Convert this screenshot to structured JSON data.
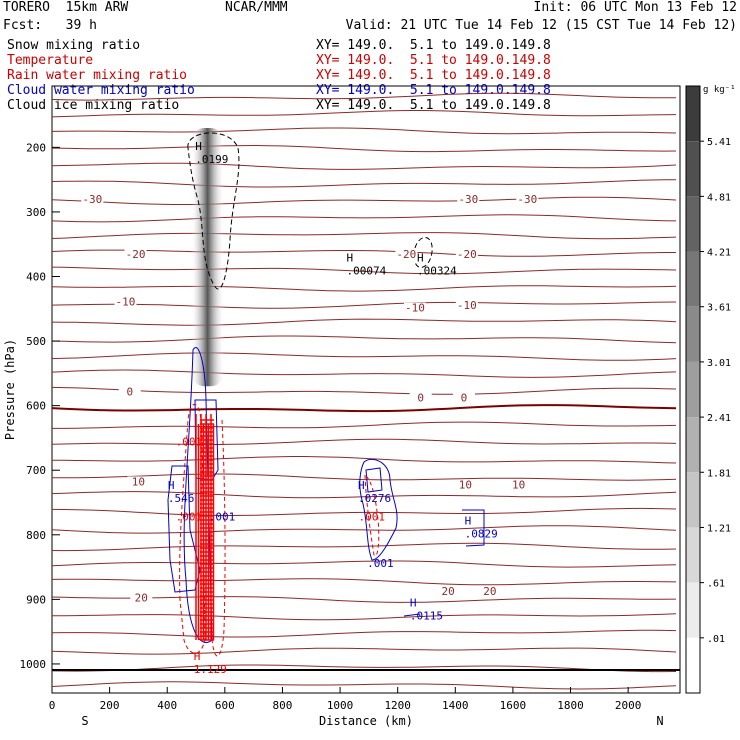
{
  "header": {
    "model": "TORERO  15km ARW",
    "center": "NCAR/MMM",
    "init": "Init: 06 UTC Mon 13 Feb 12",
    "fcst": "Fcst:   39 h",
    "valid": "Valid: 21 UTC Tue 14 Feb 12 (15 CST Tue 14 Feb 12)"
  },
  "legend": [
    {
      "label": "Snow mixing ratio",
      "xy": "XY= 149.0.  5.1 to 149.0.149.8",
      "color": "#000000"
    },
    {
      "label": "Temperature",
      "xy": "XY= 149.0.  5.1 to 149.0.149.8",
      "color": "#cc0000"
    },
    {
      "label": "Rain water mixing ratio",
      "xy": "XY= 149.0.  5.1 to 149.0.149.8",
      "color": "#cc0000"
    },
    {
      "label": "Cloud water mixing ratio",
      "xy": "XY= 149.0.  5.1 to 149.0.149.8",
      "color": "#0000cc"
    },
    {
      "label": "Cloud ice mixing ratio",
      "xy": "XY= 149.0.  5.1 to 149.0.149.8",
      "color": "#000000"
    }
  ],
  "chart_data": {
    "type": "contour",
    "xlabel": "Distance (km)",
    "ylabel": "Pressure (hPa)",
    "xlim": [
      0,
      2180
    ],
    "ylim": [
      1045,
      105
    ],
    "xticks": [
      "0",
      "200",
      "400",
      "600",
      "800",
      "1000",
      "1200",
      "1400",
      "1600",
      "1800",
      "2000"
    ],
    "yticks": [
      "200",
      "300",
      "400",
      "500",
      "600",
      "700",
      "800",
      "900",
      "1000"
    ],
    "x_endpoints": {
      "left": "S",
      "right": "N"
    },
    "colorbar": {
      "units": "g kg⁻¹",
      "levels": [
        "5.41",
        "4.81",
        "4.21",
        "3.61",
        "3.01",
        "2.41",
        "1.81",
        "1.21",
        ".61",
        ".01"
      ]
    },
    "snow_column": {
      "x": 540,
      "p_top": 170,
      "p_bottom": 570
    },
    "temperature_labels": [
      {
        "text": "-30",
        "x": 140,
        "p": 285
      },
      {
        "text": "-30",
        "x": 1445,
        "p": 285
      },
      {
        "text": "-30",
        "x": 1650,
        "p": 285
      },
      {
        "text": "-20",
        "x": 290,
        "p": 370
      },
      {
        "text": "-20",
        "x": 1230,
        "p": 370
      },
      {
        "text": "-20",
        "x": 1440,
        "p": 370
      },
      {
        "text": "-10",
        "x": 255,
        "p": 443
      },
      {
        "text": "-10",
        "x": 1260,
        "p": 453
      },
      {
        "text": "-10",
        "x": 1440,
        "p": 449
      },
      {
        "text": "0",
        "x": 270,
        "p": 583
      },
      {
        "text": "0",
        "x": 1280,
        "p": 592
      },
      {
        "text": "0",
        "x": 1430,
        "p": 592
      },
      {
        "text": "10",
        "x": 300,
        "p": 722
      },
      {
        "text": "10",
        "x": 1435,
        "p": 727
      },
      {
        "text": "10",
        "x": 1620,
        "p": 727
      },
      {
        "text": "20",
        "x": 310,
        "p": 902
      },
      {
        "text": "20",
        "x": 1375,
        "p": 892
      },
      {
        "text": "20",
        "x": 1520,
        "p": 892
      }
    ],
    "max_labels": [
      {
        "marker": "H",
        "value": ".0199",
        "x": 525,
        "p": 210,
        "series": "Cloud ice mixing ratio"
      },
      {
        "marker": "H",
        "value": ".00074",
        "x": 1050,
        "p": 383,
        "series": "Cloud ice mixing ratio"
      },
      {
        "marker": "H",
        "value": ".00324",
        "x": 1295,
        "p": 383,
        "series": "Cloud ice mixing ratio"
      },
      {
        "marker": "H",
        "value": ".546",
        "x": 430,
        "p": 735,
        "series": "Cloud water mixing ratio"
      },
      {
        "marker": "H",
        "value": ".0276",
        "x": 1090,
        "p": 735,
        "series": "Cloud water mixing ratio"
      },
      {
        "marker": "H",
        "value": ".0829",
        "x": 1460,
        "p": 790,
        "series": "Cloud water mixing ratio"
      },
      {
        "marker": "H",
        "value": ".0115",
        "x": 1270,
        "p": 917,
        "series": "Cloud water mixing ratio"
      },
      {
        "marker": "H",
        "value": "1.129",
        "x": 520,
        "p": 1000,
        "series": "Rain water mixing ratio"
      }
    ],
    "contour_labels": [
      {
        "text": ".001",
        "x": 475,
        "p": 662,
        "series": "Rain water mixing ratio"
      },
      {
        "text": ".001",
        "x": 475,
        "p": 778,
        "series": "Rain water mixing ratio"
      },
      {
        "text": ".001",
        "x": 590,
        "p": 778,
        "series": "Cloud water mixing ratio"
      },
      {
        "text": ".001",
        "x": 1110,
        "p": 778,
        "series": "Rain water mixing ratio"
      },
      {
        "text": ".001",
        "x": 1140,
        "p": 850,
        "series": "Cloud water mixing ratio"
      }
    ]
  }
}
